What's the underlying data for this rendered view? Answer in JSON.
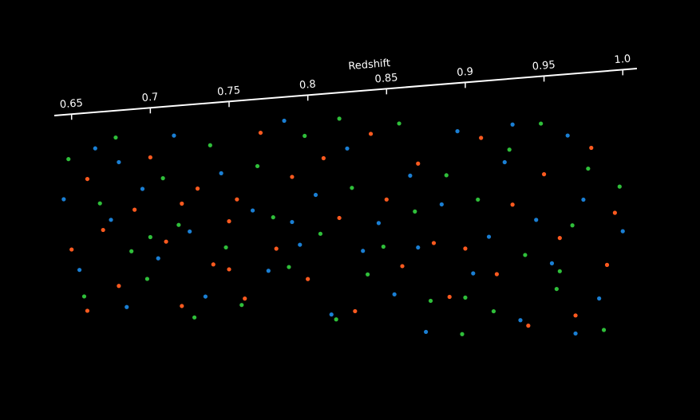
{
  "chart_data": {
    "type": "scatter",
    "x_label": "Redshift",
    "xlim": [
      0.639,
      1.009
    ],
    "ylim": [
      0,
      1
    ],
    "xticks": [
      0.65,
      0.7,
      0.75,
      0.8,
      0.85,
      0.9,
      0.95,
      {
        "value": 1.0,
        "label": "1.0"
      }
    ],
    "series": [
      {
        "color": "#ff5a1f",
        "x": [
          0.65,
          0.66,
          0.67,
          0.68,
          0.69,
          0.7,
          0.71,
          0.72,
          0.73,
          0.74,
          0.75,
          0.755,
          0.76,
          0.77,
          0.78,
          0.79,
          0.8,
          0.81,
          0.82,
          0.83,
          0.84,
          0.85,
          0.86,
          0.87,
          0.88,
          0.89,
          0.9,
          0.91,
          0.92,
          0.93,
          0.94,
          0.95,
          0.96,
          0.97,
          0.98,
          0.99,
          0.995,
          0.72,
          0.75,
          0.66
        ],
        "values": [
          0.65,
          0.3,
          0.55,
          0.82,
          0.45,
          0.2,
          0.6,
          0.9,
          0.35,
          0.7,
          0.5,
          0.4,
          0.85,
          0.1,
          0.62,
          0.3,
          0.75,
          0.22,
          0.48,
          0.88,
          0.12,
          0.4,
          0.68,
          0.25,
          0.58,
          0.8,
          0.6,
          0.15,
          0.7,
          0.42,
          0.9,
          0.3,
          0.55,
          0.85,
          0.2,
          0.65,
          0.45,
          0.42,
          0.72,
          0.95
        ]
      },
      {
        "color": "#1a7fd4",
        "x": [
          0.645,
          0.655,
          0.665,
          0.675,
          0.685,
          0.695,
          0.705,
          0.715,
          0.725,
          0.735,
          0.745,
          0.765,
          0.775,
          0.785,
          0.795,
          0.805,
          0.815,
          0.825,
          0.835,
          0.845,
          0.855,
          0.865,
          0.875,
          0.885,
          0.895,
          0.905,
          0.915,
          0.925,
          0.935,
          0.945,
          0.955,
          0.965,
          0.975,
          0.985,
          1.0,
          0.68,
          0.79,
          0.87,
          0.93,
          0.97
        ],
        "values": [
          0.4,
          0.75,
          0.15,
          0.5,
          0.92,
          0.35,
          0.68,
          0.1,
          0.55,
          0.85,
          0.28,
          0.45,
          0.72,
          0.05,
          0.6,
          0.38,
          0.9,
          0.18,
          0.62,
          0.5,
          0.8,
          0.3,
          0.95,
          0.42,
          0.12,
          0.7,
          0.55,
          0.25,
          0.88,
          0.48,
          0.65,
          0.15,
          0.4,
          0.78,
          0.52,
          0.22,
          0.5,
          0.6,
          0.1,
          0.92
        ]
      },
      {
        "color": "#2fbf3a",
        "x": [
          0.648,
          0.658,
          0.668,
          0.678,
          0.688,
          0.698,
          0.708,
          0.718,
          0.728,
          0.738,
          0.748,
          0.758,
          0.768,
          0.778,
          0.788,
          0.798,
          0.808,
          0.818,
          0.828,
          0.838,
          0.848,
          0.858,
          0.868,
          0.878,
          0.888,
          0.898,
          0.908,
          0.918,
          0.928,
          0.938,
          0.948,
          0.958,
          0.968,
          0.978,
          0.988,
          0.998,
          0.7,
          0.82,
          0.9,
          0.96
        ],
        "values": [
          0.2,
          0.88,
          0.42,
          0.1,
          0.65,
          0.78,
          0.3,
          0.52,
          0.95,
          0.15,
          0.62,
          0.88,
          0.25,
          0.48,
          0.7,
          0.12,
          0.55,
          0.92,
          0.35,
          0.72,
          0.6,
          0.08,
          0.45,
          0.82,
          0.3,
          0.95,
          0.4,
          0.85,
          0.2,
          0.62,
          0.1,
          0.75,
          0.5,
          0.28,
          0.9,
          0.35,
          0.58,
          0.05,
          0.8,
          0.68
        ]
      }
    ]
  }
}
